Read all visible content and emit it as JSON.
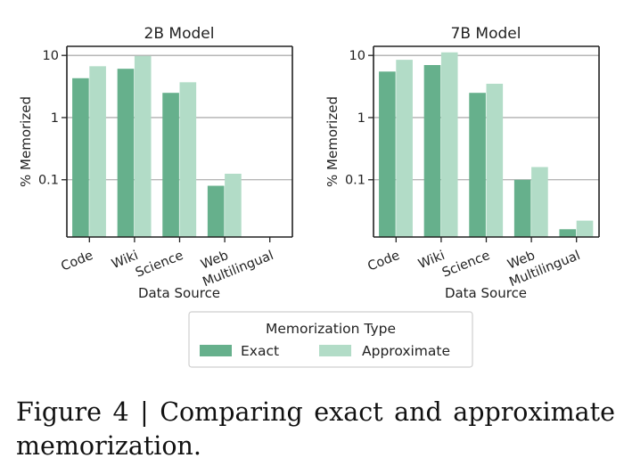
{
  "chart_data": [
    {
      "type": "bar",
      "title": "2B Model",
      "xlabel": "Data Source",
      "ylabel": "% Memorized",
      "yscale": "log",
      "ylim": [
        0.012,
        14
      ],
      "yticks": [
        0.1,
        1,
        10
      ],
      "ytick_labels": [
        "0.1",
        "1",
        "10"
      ],
      "grid": true,
      "categories": [
        "Code",
        "Wiki",
        "Science",
        "Web",
        "Multilingual"
      ],
      "series": [
        {
          "name": "Exact",
          "values": [
            4.3,
            6.1,
            2.5,
            0.08,
            null
          ]
        },
        {
          "name": "Approximate",
          "values": [
            6.7,
            9.8,
            3.7,
            0.125,
            null
          ]
        }
      ]
    },
    {
      "type": "bar",
      "title": "7B Model",
      "xlabel": "Data Source",
      "ylabel": "% Memorized",
      "yscale": "log",
      "ylim": [
        0.012,
        14
      ],
      "yticks": [
        0.1,
        1,
        10
      ],
      "ytick_labels": [
        "0.1",
        "1",
        "10"
      ],
      "grid": true,
      "categories": [
        "Code",
        "Wiki",
        "Science",
        "Web",
        "Multilingual"
      ],
      "series": [
        {
          "name": "Exact",
          "values": [
            5.5,
            7.0,
            2.5,
            0.1,
            0.016
          ]
        },
        {
          "name": "Approximate",
          "values": [
            8.5,
            11.2,
            3.5,
            0.16,
            0.022
          ]
        }
      ]
    }
  ],
  "legend": {
    "title": "Memorization Type",
    "placement": "bottom-center",
    "entries": [
      {
        "name": "Exact",
        "color": "#66b08c"
      },
      {
        "name": "Approximate",
        "color": "#b2dcc7"
      }
    ]
  },
  "colors": {
    "exact": "#66b08c",
    "approximate": "#b2dcc7",
    "grid": "#9e9e9e",
    "axis": "#222222"
  },
  "caption": "Figure 4 | Comparing exact and approximate memorization."
}
